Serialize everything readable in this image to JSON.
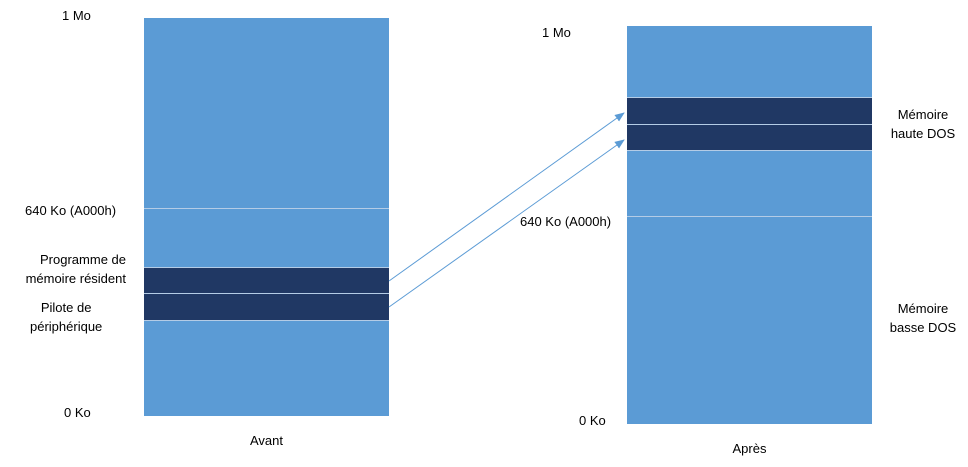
{
  "colors": {
    "memory_fill": "#5b9bd5",
    "memory_border": "#b4cce6",
    "resident_block": "#203864",
    "arrow": "#5b9bd5"
  },
  "before": {
    "caption": "Avant",
    "top_label": "1 Mo",
    "boundary_label": "640 Ko (A000h)",
    "bottom_label": "0 Ko",
    "tsr_label_line1": "Programme de",
    "tsr_label_line2": "mémoire résident",
    "driver_label_line1": "Pilote de",
    "driver_label_line2": "périphérique"
  },
  "after": {
    "caption": "Après",
    "top_label": "1 Mo",
    "boundary_label": "640 Ko (A000h)",
    "bottom_label": "0 Ko",
    "upper_label_line1": "Mémoire",
    "upper_label_line2": "haute DOS",
    "lower_label_line1": "Mémoire",
    "lower_label_line2": "basse DOS"
  }
}
